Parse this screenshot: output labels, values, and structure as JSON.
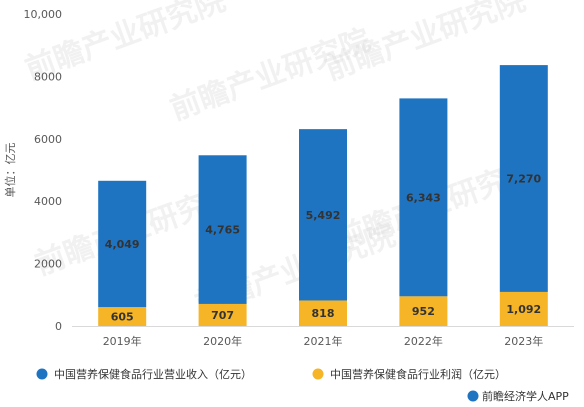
{
  "chart_data": {
    "type": "bar",
    "stacked": true,
    "categories": [
      "2019年",
      "2020年",
      "2021年",
      "2022年",
      "2023年"
    ],
    "series": [
      {
        "name": "中国营养保健食品行业营业收入（亿元）",
        "color": "#1f74c2",
        "values": [
          4049,
          4765,
          5492,
          6343,
          7270
        ],
        "labels": [
          "4,049",
          "4,765",
          "5,492",
          "6,343",
          "7,270"
        ]
      },
      {
        "name": "中国营养保健食品行业利润（亿元）",
        "color": "#f5b527",
        "values": [
          605,
          707,
          818,
          952,
          1092
        ],
        "labels": [
          "605",
          "707",
          "818",
          "952",
          "1,092"
        ]
      }
    ],
    "ylabel": "单位：亿元",
    "yticks": [
      "0",
      "2000",
      "4000",
      "6000",
      "8000",
      "10,000"
    ],
    "ylim": [
      0,
      10000
    ],
    "grid": false,
    "legend": "bottom"
  },
  "source": "前瞻经济学人APP",
  "watermark": "前瞻产业研究院"
}
